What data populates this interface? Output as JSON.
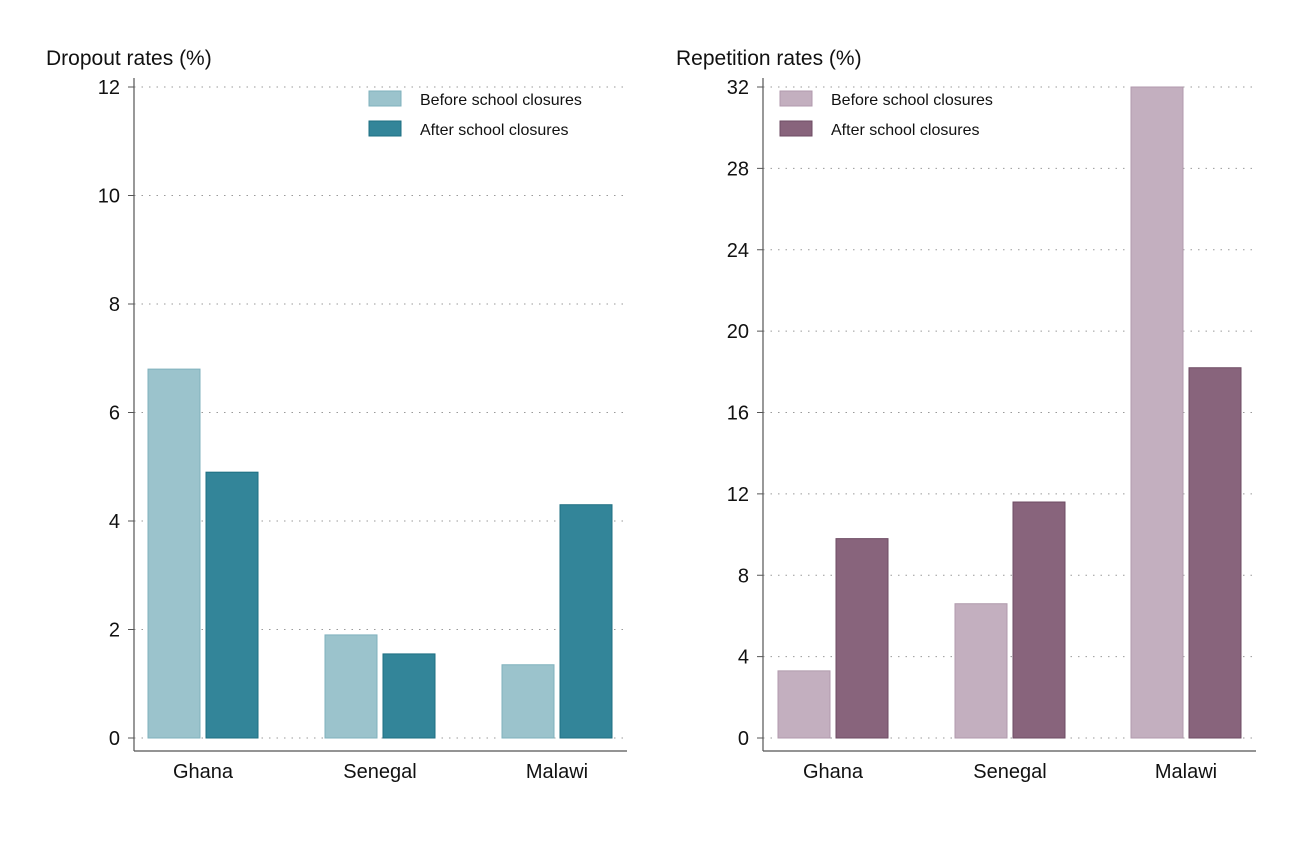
{
  "chart_data": [
    {
      "type": "bar",
      "title": "Dropout rates (%)",
      "categories": [
        "Ghana",
        "Senegal",
        "Malawi"
      ],
      "series": [
        {
          "name": "Before school closures",
          "values": [
            6.8,
            1.9,
            1.35
          ],
          "color": "#9BC3CC",
          "stroke": "#7FB1BD"
        },
        {
          "name": "After school closures",
          "values": [
            4.9,
            1.55,
            4.3
          ],
          "color": "#338599",
          "stroke": "#1E6F82"
        }
      ],
      "ylim": [
        0,
        12
      ],
      "yticks": [
        "0",
        "2",
        "4",
        "6",
        "8",
        "10",
        "12"
      ],
      "grid": "horizontal dotted",
      "legend_position": "top-right"
    },
    {
      "type": "bar",
      "title": "Repetition rates (%)",
      "categories": [
        "Ghana",
        "Senegal",
        "Malawi"
      ],
      "series": [
        {
          "name": "Before school closures",
          "values": [
            3.3,
            6.6,
            32.0
          ],
          "color": "#C3AFBF",
          "stroke": "#B09AAC"
        },
        {
          "name": "After school closures",
          "values": [
            9.8,
            11.6,
            18.2
          ],
          "color": "#88647C",
          "stroke": "#6E4B63"
        }
      ],
      "ylim": [
        0,
        32
      ],
      "yticks": [
        "0",
        "4",
        "8",
        "12",
        "16",
        "20",
        "24",
        "28",
        "32"
      ],
      "grid": "horizontal dotted",
      "legend_position": "top-left"
    }
  ]
}
